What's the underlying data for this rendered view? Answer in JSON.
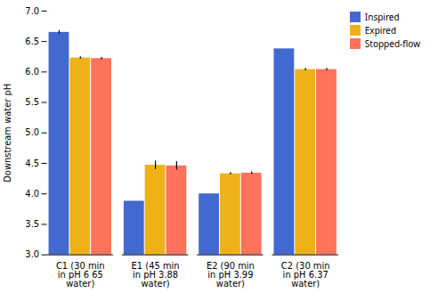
{
  "chart_data": {
    "type": "bar",
    "ylabel": "Downstream water pH",
    "ylim": [
      3.0,
      7.0
    ],
    "yticks": [
      {
        "value": 3.0,
        "label": "3.0"
      },
      3.5,
      {
        "value": 4.0,
        "label": "4.0"
      },
      4.5,
      {
        "value": 5.0,
        "label": "5.0"
      },
      5.5,
      {
        "value": 6.0,
        "label": "6.0"
      },
      6.5,
      {
        "value": 7.0,
        "label": "7.0"
      }
    ],
    "categories": [
      "C1 (30 min\nin pH 6 65\nwater)",
      "E1 (45 min\nin pH 3.88\nwater)",
      "E2 (90 min\nin pH 3.99\nwater)",
      "C2 (30 min\nin pH 6.37\nwater)"
    ],
    "series": [
      {
        "name": "Inspired",
        "values": [
          6.65,
          3.88,
          4.0,
          6.38
        ],
        "errors": [
          0.03,
          0.0,
          0.0,
          0.0
        ]
      },
      {
        "name": "Expired",
        "values": [
          6.23,
          4.47,
          4.33,
          6.04
        ],
        "errors": [
          0.02,
          0.07,
          0.02,
          0.02
        ]
      },
      {
        "name": "Stopped-flow",
        "values": [
          6.22,
          4.46,
          4.34,
          6.04
        ],
        "errors": [
          0.02,
          0.07,
          0.02,
          0.02
        ]
      }
    ],
    "legend": "upper right"
  }
}
